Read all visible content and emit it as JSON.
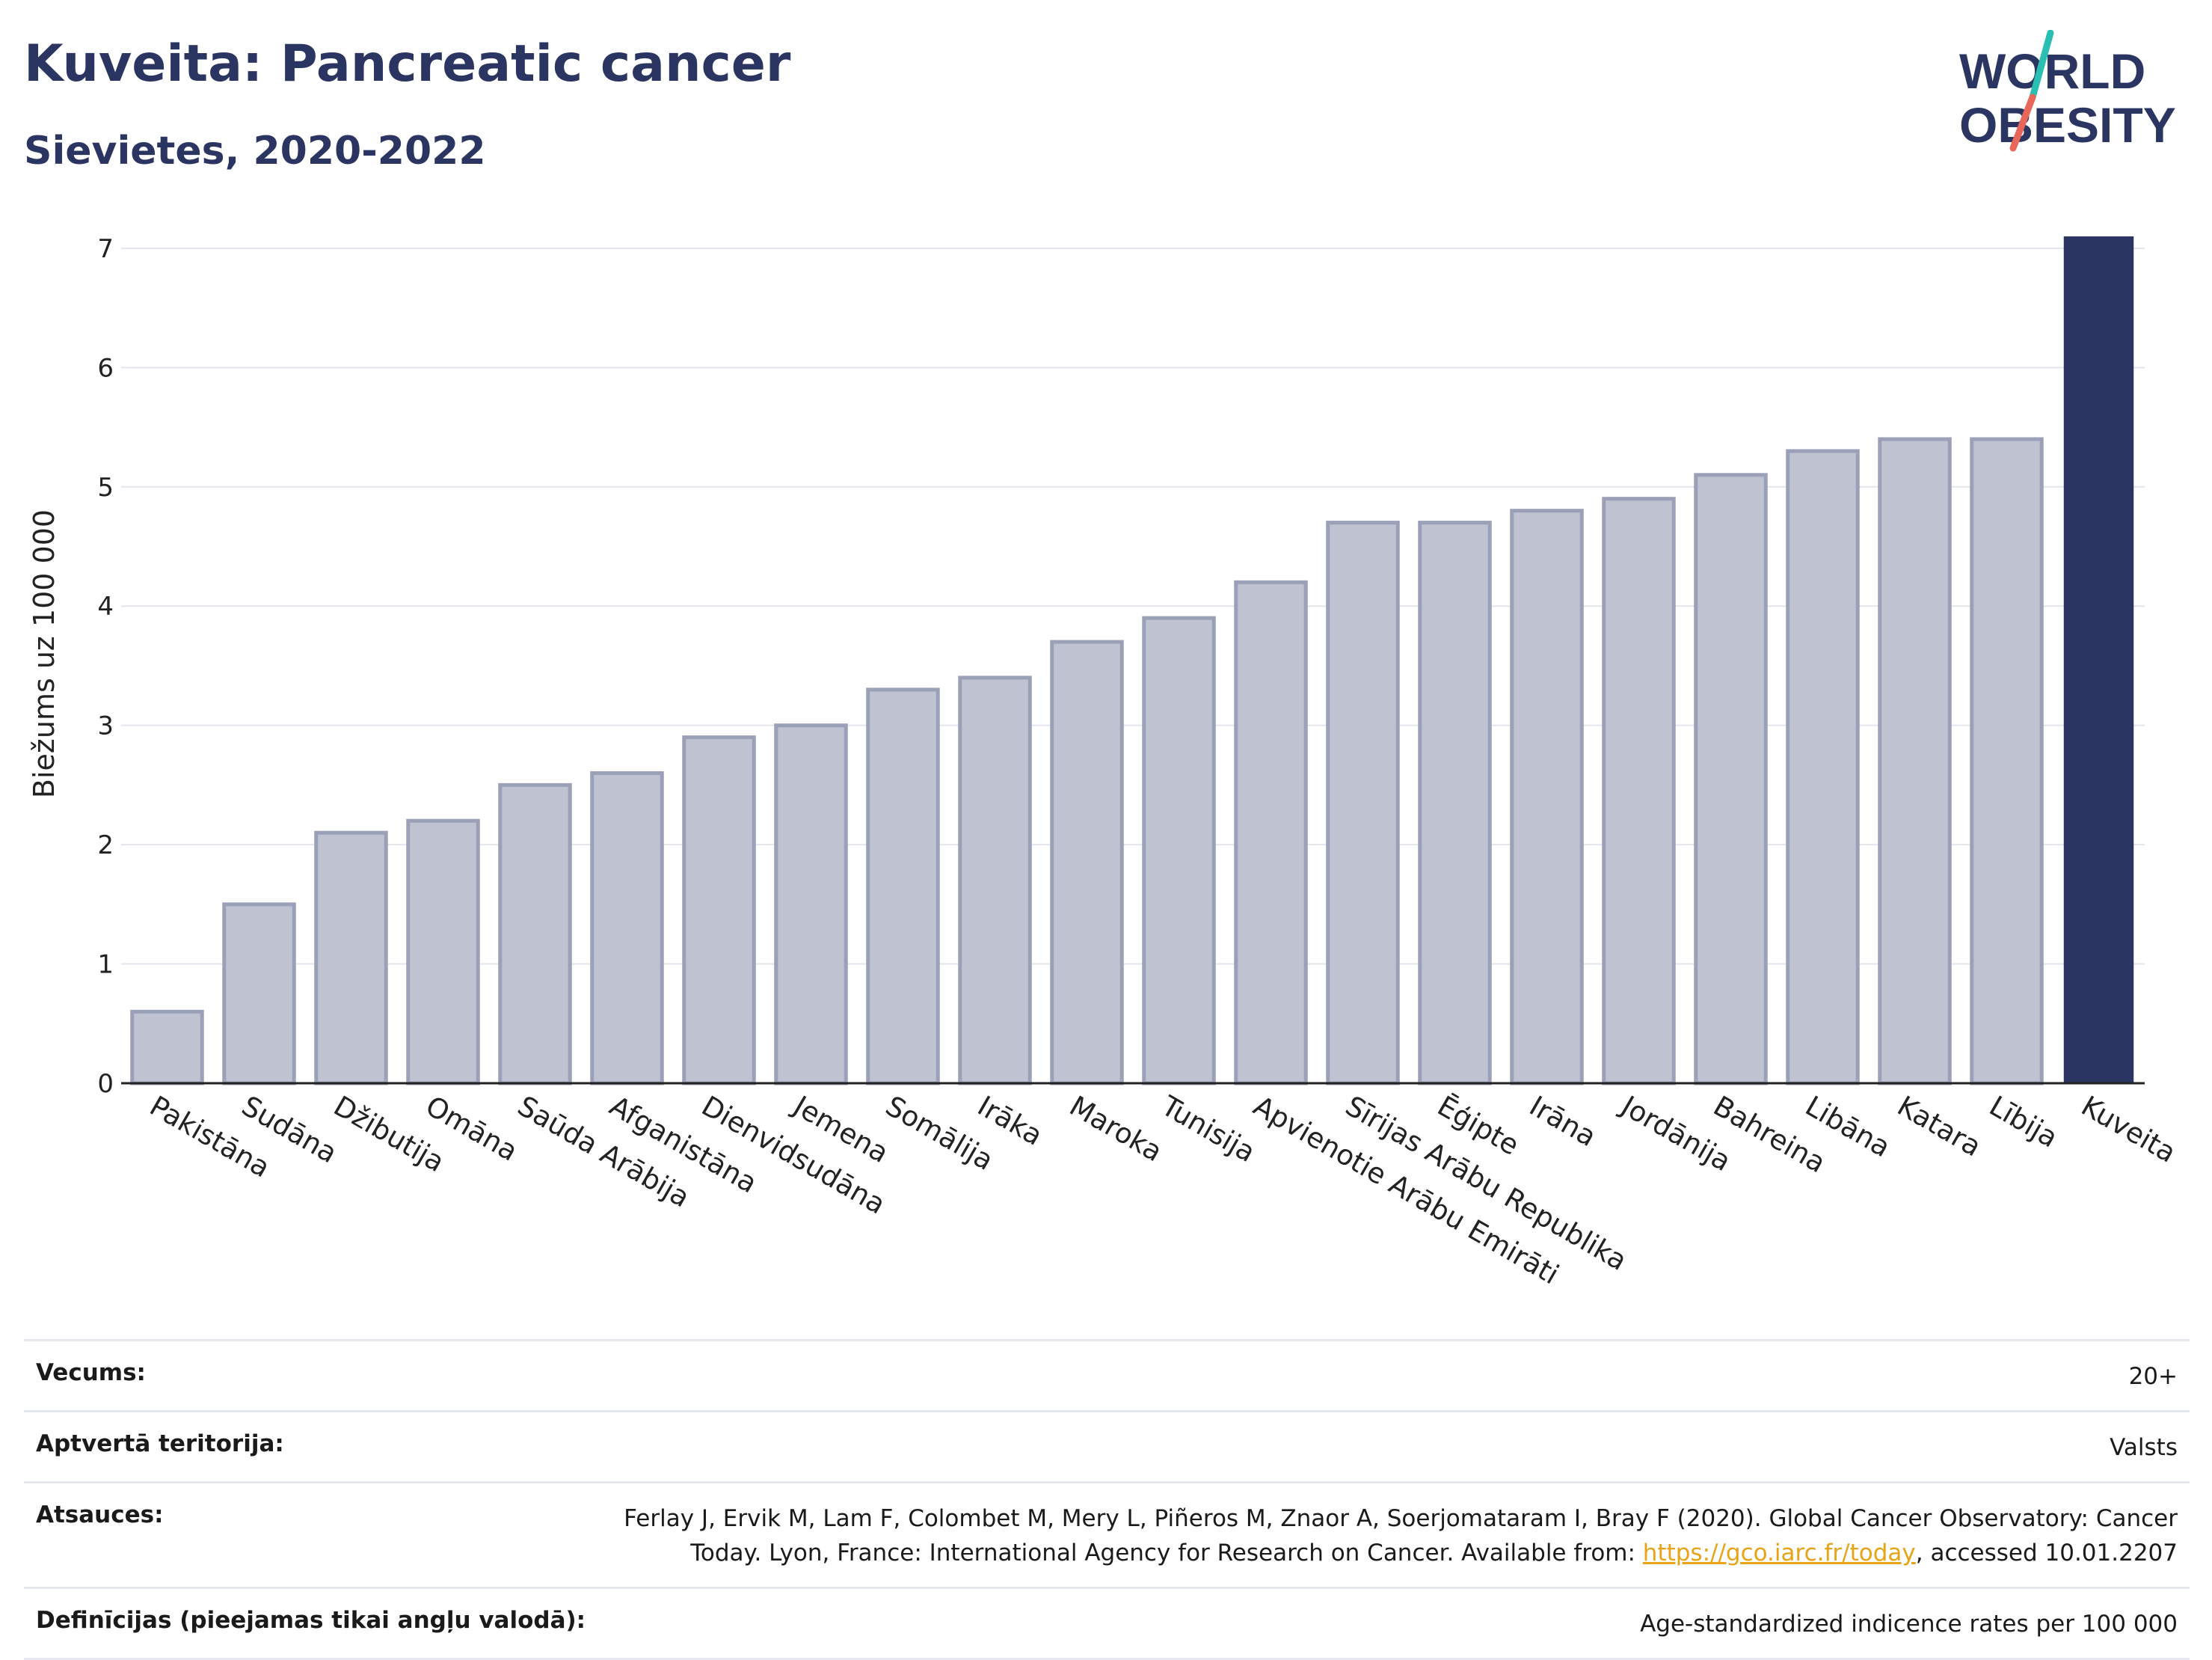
{
  "header": {
    "title": "Kuveita: Pancreatic cancer",
    "subtitle": "Sievietes, 2020-2022"
  },
  "logo": {
    "line1": "WORLD",
    "line2": "OBESITY",
    "colors": {
      "text": "#2b3561",
      "slash_top": "#2bbfb3",
      "slash_bottom": "#e8665a"
    }
  },
  "chart_data": {
    "type": "bar",
    "ylabel": "Biežums uz 100 000",
    "ylim": [
      0,
      7.2
    ],
    "yticks": [
      0,
      1,
      2,
      3,
      4,
      5,
      6,
      7
    ],
    "grid": true,
    "categories": [
      "Pakistāna",
      "Sudāna",
      "Džibutija",
      "Omāna",
      "Saūda Arābija",
      "Afganistāna",
      "Dienvidsudāna",
      "Jemena",
      "Somālija",
      "Irāka",
      "Maroka",
      "Tunisija",
      "Apvienotie Arābu Emirāti",
      "Sīrijas Arābu Republika",
      "Ēģipte",
      "Irāna",
      "Jordānija",
      "Bahreina",
      "Libāna",
      "Katara",
      "Lībija",
      "Kuveita"
    ],
    "values": [
      0.6,
      1.5,
      2.1,
      2.2,
      2.5,
      2.6,
      2.9,
      3.0,
      3.3,
      3.4,
      3.7,
      3.9,
      4.2,
      4.7,
      4.7,
      4.8,
      4.9,
      5.1,
      5.3,
      5.4,
      5.4,
      7.1
    ],
    "highlight": "Kuveita",
    "colors": {
      "bar": "#bfc3d1",
      "bar_edge": "#9aa0b7",
      "highlight": "#2b3561"
    }
  },
  "meta": [
    {
      "label": "Vecums:",
      "value": "20+"
    },
    {
      "label": "Aptvertā teritorija:",
      "value": "Valsts"
    },
    {
      "label": "Atsauces:",
      "value_pre": "Ferlay J, Ervik M, Lam F, Colombet M, Mery L, Piñeros M, Znaor A, Soerjomataram I, Bray F (2020). Global Cancer Observatory: Cancer Today. Lyon, France: International Agency for Research on Cancer. Available from: ",
      "link": "https://gco.iarc.fr/today",
      "value_post": ", accessed 10.01.2207"
    },
    {
      "label": "Definīcijas (pieejamas tikai angļu valodā):",
      "value": "Age-standardized indicence rates per 100 000"
    }
  ]
}
